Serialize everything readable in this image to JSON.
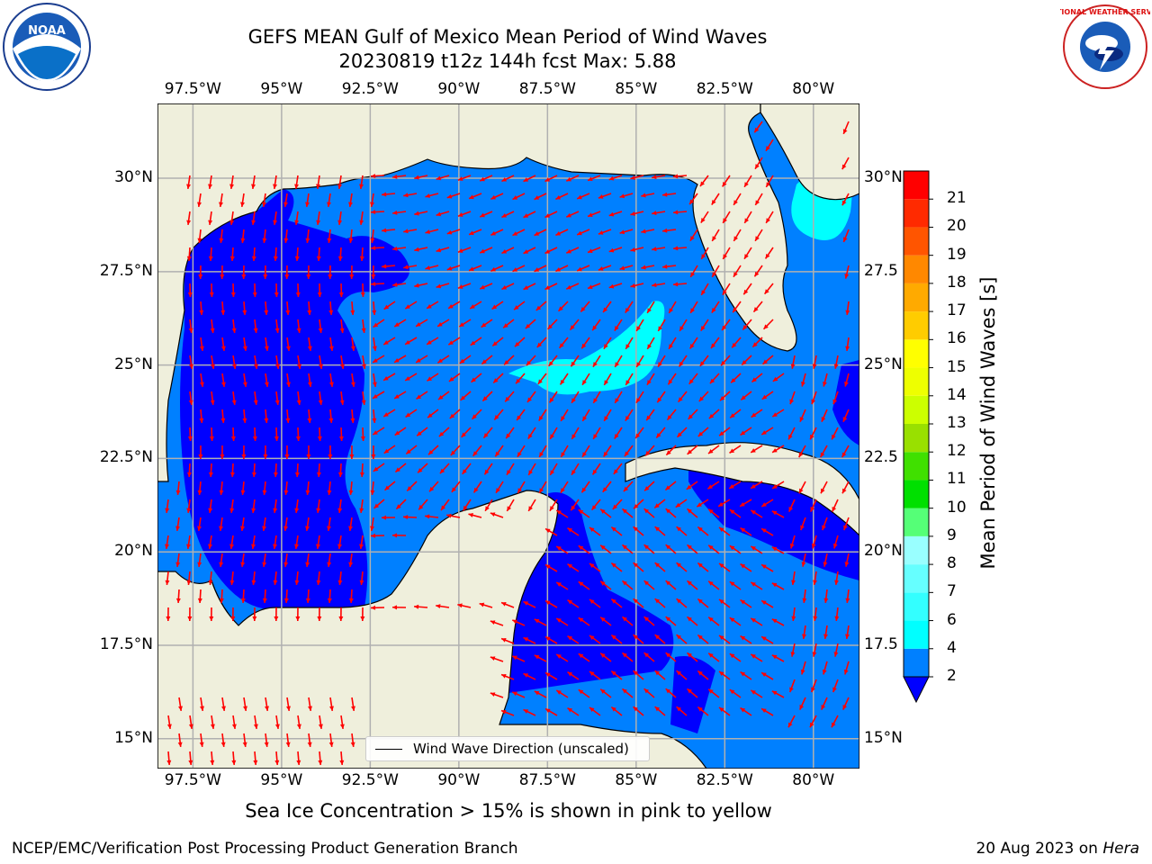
{
  "title": {
    "line1": "GEFS MEAN Gulf of Mexico Mean Period of Wind Waves",
    "line2": "20230819 t12z 144h fcst   Max: 5.88"
  },
  "map": {
    "lon_range": [
      -98.5,
      -78.7
    ],
    "lat_range": [
      14.2,
      32
    ],
    "lon_ticks": [
      "97.5°W",
      "95°W",
      "92.5°W",
      "90°W",
      "87.5°W",
      "85°W",
      "82.5°W",
      "80°W"
    ],
    "lat_ticks_left": [
      "30°N",
      "27.5°N",
      "25°N",
      "22.5°N",
      "20°N",
      "17.5°N",
      "15°N"
    ],
    "lat_ticks_right": [
      "30°N",
      "27.5",
      "25°N",
      "22.5",
      "20°N",
      "17.5",
      "15°N"
    ],
    "land_color": "#efefdc",
    "grid_color": "#b0b0b0",
    "arrow_color": "#ff0000",
    "legend_label": "Wind Wave Direction (unscaled)"
  },
  "colorbar": {
    "label": "Mean Period of Wind Waves [s]",
    "ticks": [
      "2",
      "4",
      "6",
      "7",
      "8",
      "9",
      "10",
      "11",
      "12",
      "13",
      "14",
      "15",
      "16",
      "17",
      "18",
      "19",
      "20",
      "21"
    ],
    "colors": [
      "#0080ff",
      "#00ffff",
      "#33ffff",
      "#66ffff",
      "#99ffff",
      "#55ff77",
      "#00e000",
      "#40e000",
      "#99e000",
      "#ccff00",
      "#eeff00",
      "#ffff00",
      "#ffcc00",
      "#ffaa00",
      "#ff8800",
      "#ff5500",
      "#ff2a00",
      "#ff0000"
    ],
    "under_color": "#0000ff"
  },
  "logos": {
    "noaa": "NOAA",
    "nws": "NATIONAL WEATHER SERVICE"
  },
  "footer": {
    "note": "Sea Ice Concentration > 15% is shown in pink to yellow",
    "credit": "NCEP/EMC/Verification Post Processing Product Generation Branch",
    "date": "20 Aug 2023 on",
    "machine": "Hera"
  }
}
